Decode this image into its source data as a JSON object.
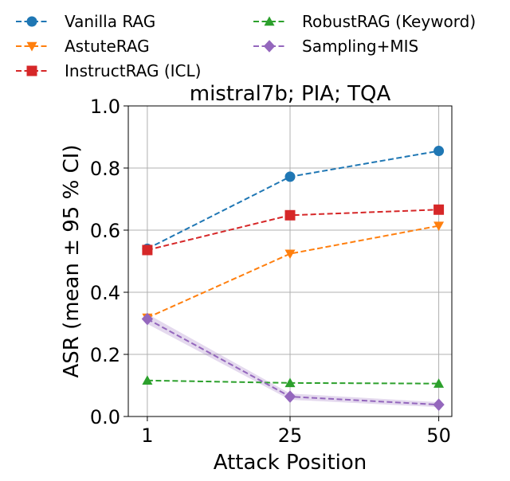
{
  "chart_data": {
    "type": "line",
    "title": "mistral7b; PIA; TQA",
    "xlabel": "Attack Position",
    "ylabel": "ASR (mean ± 95 % CI)",
    "x": [
      1,
      25,
      50
    ],
    "xticks": [
      "1",
      "25",
      "50"
    ],
    "ylim": [
      0.0,
      1.0
    ],
    "yticks": [
      "0.0",
      "0.2",
      "0.4",
      "0.6",
      "0.8",
      "1.0"
    ],
    "grid": true,
    "legend_position": "top, outside plot, two columns",
    "series": [
      {
        "name": "Vanilla RAG",
        "values": [
          0.54,
          0.772,
          0.855
        ],
        "color": "#1f77b4",
        "marker": "circle"
      },
      {
        "name": "AstuteRAG",
        "values": [
          0.318,
          0.524,
          0.614
        ],
        "color": "#ff7f0e",
        "marker": "triangle-down"
      },
      {
        "name": "InstructRAG (ICL)",
        "values": [
          0.536,
          0.648,
          0.666
        ],
        "color": "#d62728",
        "marker": "square"
      },
      {
        "name": "RobustRAG (Keyword)",
        "values": [
          0.116,
          0.108,
          0.106
        ],
        "color": "#2ca02c",
        "marker": "triangle-up"
      },
      {
        "name": "Sampling+MIS",
        "values": [
          0.314,
          0.064,
          0.038
        ],
        "color": "#9467bd",
        "marker": "diamond",
        "ci": [
          [
            0.298,
            0.33
          ],
          [
            0.054,
            0.074
          ],
          [
            0.03,
            0.046
          ]
        ]
      }
    ]
  }
}
